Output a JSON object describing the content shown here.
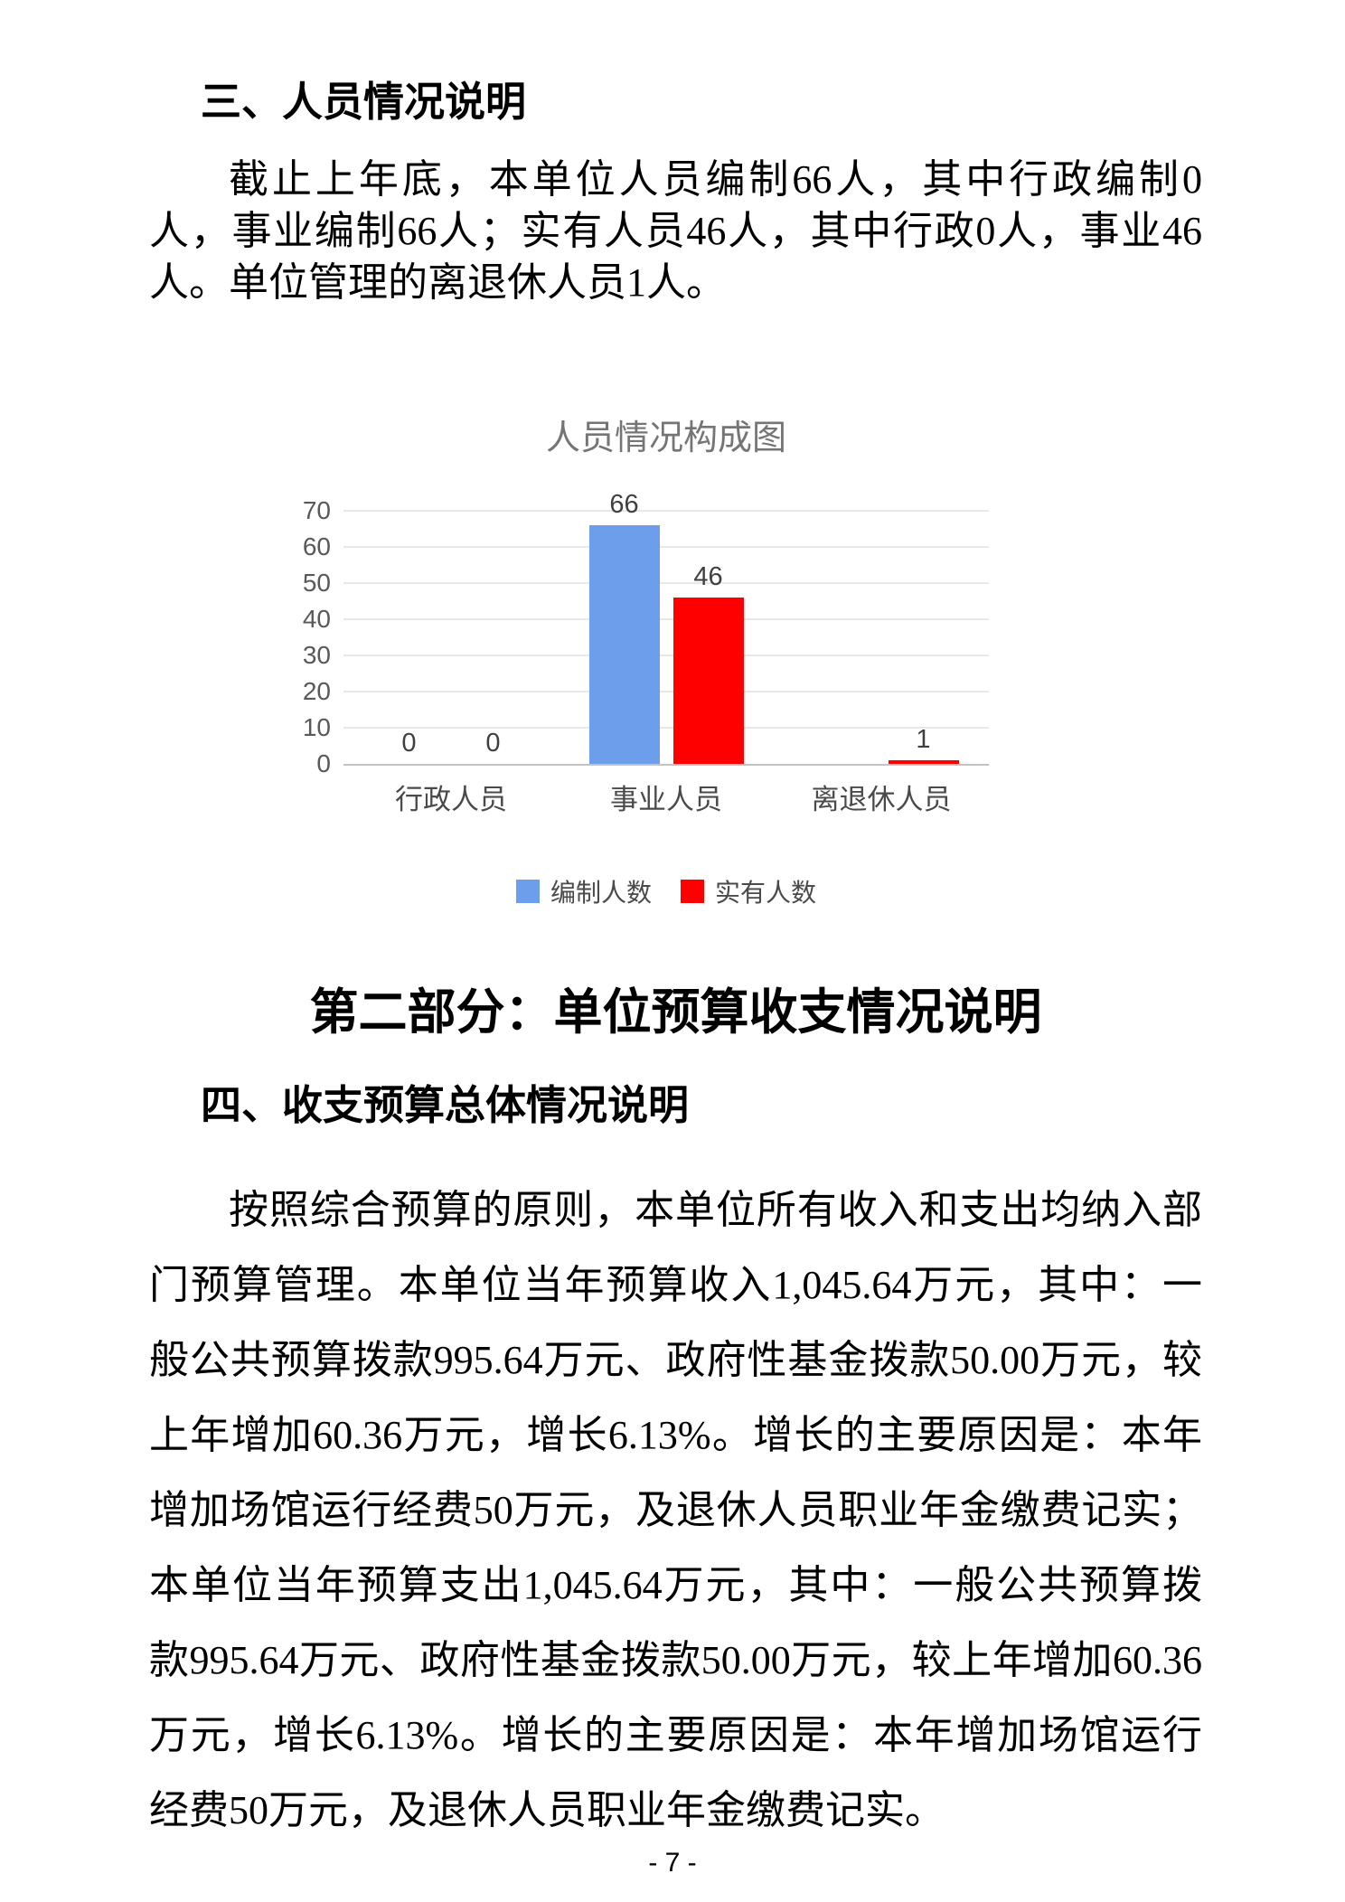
{
  "page": {
    "number": "- 7 -"
  },
  "section3": {
    "heading": "三、人员情况说明",
    "paragraph": "截止上年底，本单位人员编制66人，其中行政编制0人，事业编制66人；实有人员46人，其中行政0人，事业46人。单位管理的离退休人员1人。"
  },
  "chart_data": {
    "type": "bar",
    "title": "人员情况构成图",
    "categories": [
      "行政人员",
      "事业人员",
      "离退休人员"
    ],
    "series": [
      {
        "name": "编制人数",
        "color": "#6D9EEB",
        "values": [
          0,
          66,
          0
        ],
        "labels": [
          "0",
          "66",
          ""
        ]
      },
      {
        "name": "实有人数",
        "color": "#FF0000",
        "values": [
          0,
          46,
          1
        ],
        "labels": [
          "0",
          "46",
          "1"
        ]
      }
    ],
    "ylabel": "",
    "xlabel": "",
    "ylim": [
      0,
      70
    ],
    "yticks": [
      0,
      10,
      20,
      30,
      40,
      50,
      60,
      70
    ],
    "grid": true,
    "legend_position": "bottom"
  },
  "part2": {
    "heading": "第二部分：单位预算收支情况说明"
  },
  "section4": {
    "heading": "四、收支预算总体情况说明",
    "paragraph": "按照综合预算的原则，本单位所有收入和支出均纳入部门预算管理。本单位当年预算收入1,045.64万元，其中：一般公共预算拨款995.64万元、政府性基金拨款50.00万元，较上年增加60.36万元，增长6.13%。增长的主要原因是：本年增加场馆运行经费50万元，及退休人员职业年金缴费记实；本单位当年预算支出1,045.64万元，其中：一般公共预算拨款995.64万元、政府性基金拨款50.00万元，较上年增加60.36万元，增长6.13%。增长的主要原因是：本年增加场馆运行经费50万元，及退休人员职业年金缴费记实。"
  }
}
